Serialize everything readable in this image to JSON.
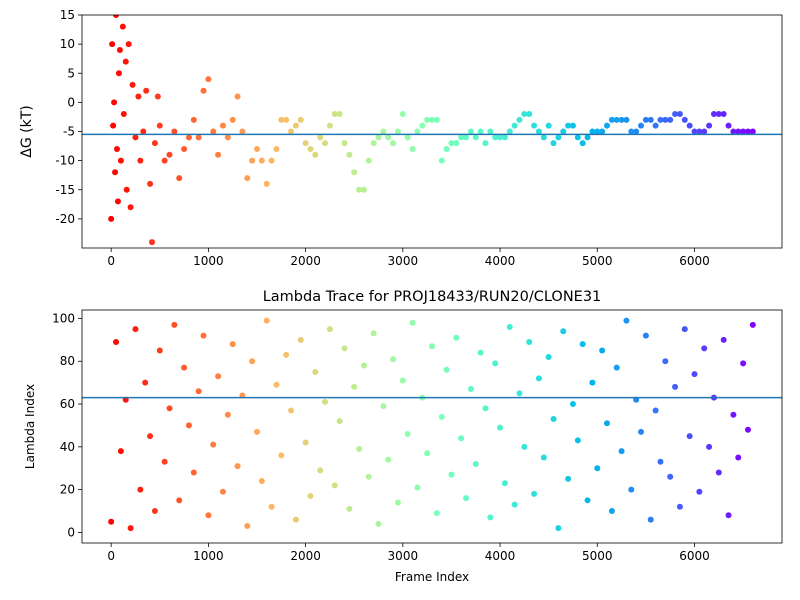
{
  "chart_data": [
    {
      "type": "scatter",
      "ylabel": "ΔG (kT)",
      "x": [
        0,
        10,
        20,
        30,
        40,
        50,
        60,
        70,
        80,
        90,
        100,
        120,
        130,
        150,
        160,
        180,
        200,
        220,
        250,
        280,
        300,
        330,
        360,
        400,
        420,
        450,
        480,
        500,
        550,
        600,
        650,
        700,
        750,
        800,
        850,
        900,
        950,
        1000,
        1050,
        1100,
        1150,
        1200,
        1250,
        1300,
        1350,
        1400,
        1450,
        1500,
        1550,
        1600,
        1650,
        1700,
        1750,
        1800,
        1850,
        1900,
        1950,
        2000,
        2050,
        2100,
        2150,
        2200,
        2250,
        2300,
        2350,
        2400,
        2450,
        2500,
        2550,
        2600,
        2650,
        2700,
        2750,
        2800,
        2850,
        2900,
        2950,
        3000,
        3050,
        3100,
        3150,
        3200,
        3250,
        3300,
        3350,
        3400,
        3450,
        3500,
        3550,
        3600,
        3650,
        3700,
        3750,
        3800,
        3850,
        3900,
        3950,
        4000,
        4050,
        4100,
        4150,
        4200,
        4250,
        4300,
        4350,
        4400,
        4450,
        4500,
        4550,
        4600,
        4650,
        4700,
        4750,
        4800,
        4850,
        4900,
        4950,
        5000,
        5050,
        5100,
        5150,
        5200,
        5250,
        5300,
        5350,
        5400,
        5450,
        5500,
        5550,
        5600,
        5650,
        5700,
        5750,
        5800,
        5850,
        5900,
        5950,
        6000,
        6050,
        6100,
        6150,
        6200,
        6250,
        6300,
        6350,
        6400,
        6450,
        6500,
        6550,
        6600
      ],
      "values": [
        -20,
        10,
        -4,
        0,
        -12,
        15,
        -8,
        -17,
        5,
        9,
        -10,
        13,
        -2,
        7,
        -15,
        10,
        -18,
        3,
        -6,
        1,
        -10,
        -5,
        2,
        -14,
        -24,
        -7,
        1,
        -4,
        -10,
        -9,
        -5,
        -13,
        -8,
        -6,
        -3,
        -6,
        2,
        4,
        -5,
        -9,
        -4,
        -6,
        -3,
        1,
        -5,
        -13,
        -10,
        -8,
        -10,
        -14,
        -10,
        -8,
        -3,
        -3,
        -5,
        -4,
        -3,
        -7,
        -8,
        -9,
        -6,
        -7,
        -4,
        -2,
        -2,
        -7,
        -9,
        -12,
        -15,
        -15,
        -10,
        -7,
        -6,
        -5,
        -6,
        -7,
        -5,
        -2,
        -6,
        -8,
        -5,
        -4,
        -3,
        -3,
        -3,
        -10,
        -8,
        -7,
        -7,
        -6,
        -6,
        -5,
        -6,
        -5,
        -7,
        -5,
        -6,
        -6,
        -6,
        -5,
        -4,
        -3,
        -2,
        -2,
        -4,
        -5,
        -6,
        -4,
        -7,
        -6,
        -5,
        -4,
        -4,
        -6,
        -7,
        -6,
        -5,
        -5,
        -5,
        -4,
        -3,
        -3,
        -3,
        -3,
        -5,
        -5,
        -4,
        -3,
        -3,
        -4,
        -3,
        -3,
        -3,
        -2,
        -2,
        -3,
        -4,
        -5,
        -5,
        -5,
        -4,
        -2,
        -2,
        -2,
        -4,
        -5,
        -5,
        -5,
        -5,
        -5
      ],
      "colormap": "rainbow_r",
      "hline": {
        "y": -5.5,
        "color": "#1f77b4"
      },
      "xlim": [
        -300,
        6900
      ],
      "xticks": [
        0,
        1000,
        2000,
        3000,
        4000,
        5000,
        6000
      ],
      "ylim": [
        -25,
        15
      ],
      "yticks": [
        -20,
        -15,
        -10,
        -5,
        0,
        5,
        10,
        15
      ]
    },
    {
      "type": "scatter",
      "title": "Lambda Trace for PROJ18433/RUN20/CLONE31",
      "xlabel": "Frame Index",
      "ylabel": "Lambda Index",
      "x": [
        0,
        50,
        100,
        150,
        200,
        250,
        300,
        350,
        400,
        450,
        500,
        550,
        600,
        650,
        700,
        750,
        800,
        850,
        900,
        950,
        1000,
        1050,
        1100,
        1150,
        1200,
        1250,
        1300,
        1350,
        1400,
        1450,
        1500,
        1550,
        1600,
        1650,
        1700,
        1750,
        1800,
        1850,
        1900,
        1950,
        2000,
        2050,
        2100,
        2150,
        2200,
        2250,
        2300,
        2350,
        2400,
        2450,
        2500,
        2550,
        2600,
        2650,
        2700,
        2750,
        2800,
        2850,
        2900,
        2950,
        3000,
        3050,
        3100,
        3150,
        3200,
        3250,
        3300,
        3350,
        3400,
        3450,
        3500,
        3550,
        3600,
        3650,
        3700,
        3750,
        3800,
        3850,
        3900,
        3950,
        4000,
        4050,
        4100,
        4150,
        4200,
        4250,
        4300,
        4350,
        4400,
        4450,
        4500,
        4550,
        4600,
        4650,
        4700,
        4750,
        4800,
        4850,
        4900,
        4950,
        5000,
        5050,
        5100,
        5150,
        5200,
        5250,
        5300,
        5350,
        5400,
        5450,
        5500,
        5550,
        5600,
        5650,
        5700,
        5750,
        5800,
        5850,
        5900,
        5950,
        6000,
        6050,
        6100,
        6150,
        6200,
        6250,
        6300,
        6350,
        6400,
        6450,
        6500,
        6550,
        6600
      ],
      "values": [
        5,
        89,
        38,
        62,
        2,
        95,
        20,
        70,
        45,
        10,
        85,
        33,
        58,
        97,
        15,
        77,
        50,
        28,
        66,
        92,
        8,
        41,
        73,
        19,
        55,
        88,
        31,
        64,
        3,
        80,
        47,
        24,
        99,
        12,
        69,
        36,
        83,
        57,
        6,
        90,
        42,
        17,
        75,
        29,
        61,
        95,
        22,
        52,
        86,
        11,
        68,
        39,
        78,
        26,
        93,
        4,
        59,
        34,
        81,
        14,
        71,
        46,
        98,
        21,
        63,
        37,
        87,
        9,
        54,
        76,
        27,
        91,
        44,
        16,
        67,
        32,
        84,
        58,
        7,
        79,
        49,
        23,
        96,
        13,
        65,
        40,
        89,
        18,
        72,
        35,
        82,
        53,
        2,
        94,
        25,
        60,
        43,
        88,
        15,
        70,
        30,
        85,
        51,
        10,
        77,
        38,
        99,
        20,
        62,
        47,
        92,
        6,
        57,
        33,
        80,
        26,
        68,
        12,
        95,
        45,
        74,
        19,
        86,
        40,
        63,
        28,
        90,
        8,
        55,
        35,
        79,
        48,
        97
      ],
      "colormap": "rainbow_r",
      "hline": {
        "y": 63,
        "color": "#1f77b4"
      },
      "xlim": [
        -300,
        6900
      ],
      "xticks": [
        0,
        1000,
        2000,
        3000,
        4000,
        5000,
        6000
      ],
      "ylim": [
        -4.95,
        103.95
      ],
      "yticks": [
        0,
        20,
        40,
        60,
        80,
        100
      ]
    }
  ]
}
